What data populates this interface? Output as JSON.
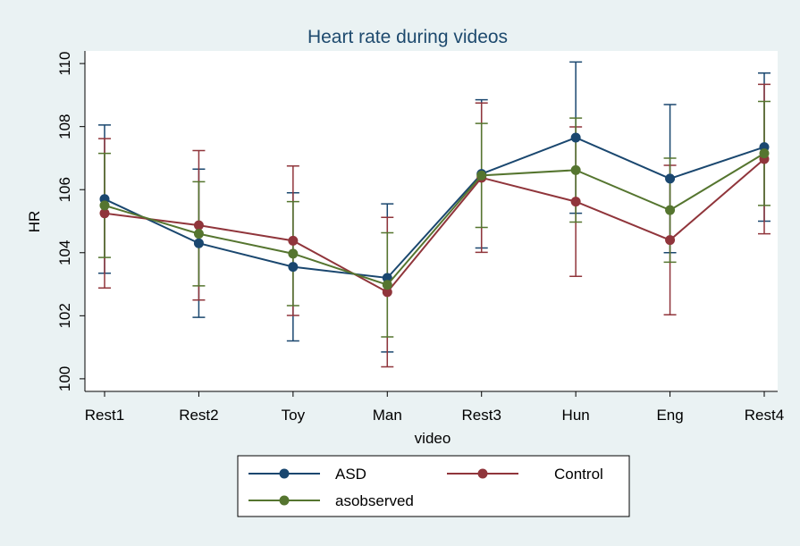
{
  "chart_data": {
    "type": "line",
    "title": "Heart rate during videos",
    "x_label": "video",
    "y_label": "HR",
    "categories": [
      "Rest1",
      "Rest2",
      "Toy",
      "Man",
      "Rest3",
      "Hun",
      "Eng",
      "Rest4"
    ],
    "series": [
      {
        "name": "ASD",
        "color": "#1a476f",
        "values": [
          105.7,
          104.3,
          103.55,
          103.2,
          106.5,
          107.65,
          106.35,
          107.35
        ],
        "errors": [
          2.35,
          2.35,
          2.35,
          2.35,
          2.35,
          2.4,
          2.35,
          2.35
        ]
      },
      {
        "name": "Control",
        "color": "#90353b",
        "values": [
          105.25,
          104.87,
          104.38,
          102.75,
          106.38,
          105.62,
          104.4,
          106.97
        ],
        "errors": [
          2.37,
          2.37,
          2.37,
          2.37,
          2.37,
          2.37,
          2.37,
          2.37
        ]
      },
      {
        "name": "asobserved",
        "color": "#55752f",
        "values": [
          105.5,
          104.6,
          103.97,
          102.98,
          106.45,
          106.62,
          105.35,
          107.15
        ],
        "errors": [
          1.65,
          1.65,
          1.65,
          1.65,
          1.65,
          1.65,
          1.65,
          1.65
        ]
      }
    ],
    "ylim": [
      99.6,
      110.4
    ],
    "yticks": [
      100,
      102,
      104,
      106,
      108,
      110
    ],
    "grid": false
  }
}
